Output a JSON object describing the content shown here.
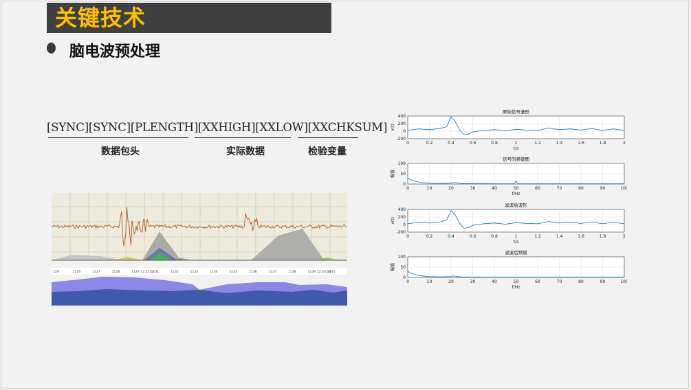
{
  "slide": {
    "title": "关键技术",
    "bullet": "脑电波预处理"
  },
  "packet": {
    "format": "[SYNC][SYNC][PLENGTH][XXHIGH][XXLOW][XXCHKSUM]",
    "header_label": "数据包头",
    "data_label": "实际数据",
    "check_label": "检验变量"
  },
  "eeg_screenshot": {
    "time_ticks": [
      "129",
      "1126",
      "1127",
      "1128",
      "1129 12:53:07",
      "1131",
      "1132",
      "1133",
      "1134",
      "1135",
      "1136",
      "1137",
      "1138",
      "1139 12:53:16",
      "1141"
    ],
    "colors": {
      "trace": "#b5652a",
      "background": "#ecebdc",
      "band_blue": "#3e5aa8",
      "band_violet": "#8a88e8"
    }
  },
  "chart_data": [
    {
      "type": "line",
      "title": "原始信号波形",
      "xlabel": "t/s",
      "ylabel": "x(t)",
      "xlim": [
        0,
        2
      ],
      "ylim": [
        -200,
        400
      ],
      "xticks": [
        "0",
        "0.2",
        "0.4",
        "0.6",
        "0.8",
        "1",
        "1.2",
        "1.4",
        "1.6",
        "1.8",
        "2"
      ],
      "yticks": [
        "400",
        "200",
        "0",
        "-200"
      ],
      "grid": true,
      "series": [
        {
          "color": "#0072bd",
          "x": [
            0,
            0.1,
            0.2,
            0.3,
            0.36,
            0.4,
            0.44,
            0.48,
            0.52,
            0.56,
            0.6,
            0.7,
            0.8,
            0.9,
            1.0,
            1.1,
            1.2,
            1.3,
            1.4,
            1.5,
            1.6,
            1.7,
            1.8,
            1.9,
            2.0
          ],
          "y": [
            20,
            60,
            40,
            70,
            120,
            380,
            250,
            30,
            -100,
            -80,
            -20,
            20,
            40,
            10,
            50,
            30,
            20,
            80,
            40,
            60,
            30,
            70,
            20,
            60,
            20
          ]
        }
      ]
    },
    {
      "type": "line",
      "title": "信号的频谱图",
      "xlabel": "f/Hz",
      "ylabel": "幅值",
      "xlim": [
        0,
        100
      ],
      "ylim": [
        0,
        100
      ],
      "xticks": [
        "0",
        "10",
        "20",
        "30",
        "40",
        "50",
        "60",
        "70",
        "80",
        "90",
        "100"
      ],
      "yticks": [
        "100",
        "50",
        "0"
      ],
      "grid": true,
      "series": [
        {
          "color": "#0072bd",
          "x": [
            0,
            1,
            2,
            3,
            4,
            6,
            8,
            10,
            15,
            20,
            21,
            25,
            30,
            40,
            49,
            50,
            51,
            60,
            70,
            80,
            90,
            100
          ],
          "y": [
            30,
            22,
            18,
            16,
            12,
            8,
            6,
            4,
            3,
            4,
            8,
            2,
            2,
            1,
            1,
            14,
            1,
            1,
            1,
            1,
            1,
            1
          ]
        }
      ]
    },
    {
      "type": "line",
      "title": "滤波后波形",
      "xlabel": "t/s",
      "ylabel": "x(t)",
      "xlim": [
        0,
        2
      ],
      "ylim": [
        -200,
        400
      ],
      "xticks": [
        "0",
        "0.2",
        "0.4",
        "0.6",
        "0.8",
        "1",
        "1.2",
        "1.4",
        "1.6",
        "1.8",
        "2"
      ],
      "yticks": [
        "400",
        "200",
        "0",
        "-200"
      ],
      "grid": true,
      "series": [
        {
          "color": "#0072bd",
          "x": [
            0,
            0.1,
            0.2,
            0.3,
            0.36,
            0.4,
            0.44,
            0.48,
            0.52,
            0.56,
            0.6,
            0.7,
            0.8,
            0.9,
            1.0,
            1.1,
            1.2,
            1.3,
            1.4,
            1.5,
            1.6,
            1.7,
            1.8,
            1.9,
            2.0
          ],
          "y": [
            20,
            60,
            40,
            70,
            120,
            370,
            250,
            30,
            -100,
            -80,
            -20,
            20,
            40,
            10,
            50,
            30,
            20,
            80,
            40,
            60,
            30,
            70,
            20,
            60,
            20
          ]
        }
      ]
    },
    {
      "type": "line",
      "title": "滤波后频谱",
      "xlabel": "f/Hz",
      "ylabel": "幅值",
      "xlim": [
        0,
        100
      ],
      "ylim": [
        0,
        100
      ],
      "xticks": [
        "0",
        "10",
        "20",
        "30",
        "40",
        "50",
        "60",
        "70",
        "80",
        "90",
        "100"
      ],
      "yticks": [
        "100",
        "50",
        "0"
      ],
      "grid": true,
      "series": [
        {
          "color": "#0072bd",
          "x": [
            0,
            1,
            2,
            3,
            4,
            6,
            8,
            10,
            15,
            20,
            21,
            25,
            30,
            40,
            50,
            60,
            70,
            80,
            90,
            100
          ],
          "y": [
            30,
            22,
            18,
            16,
            12,
            8,
            6,
            4,
            3,
            4,
            7,
            2,
            2,
            1,
            1,
            1,
            1,
            1,
            1,
            1
          ]
        }
      ]
    }
  ]
}
